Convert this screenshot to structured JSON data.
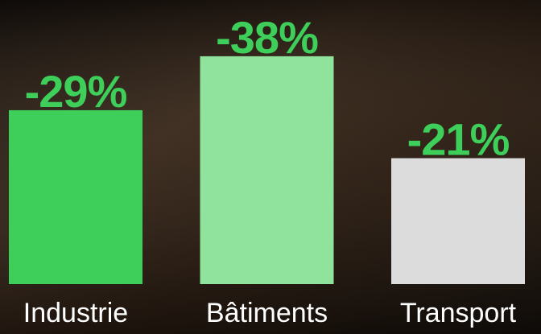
{
  "chart_data": {
    "type": "bar",
    "categories": [
      "Industrie",
      "Bâtiments",
      "Transport"
    ],
    "values": [
      -29,
      -38,
      -21
    ],
    "value_labels": [
      "-29%",
      "-38%",
      "-21%"
    ],
    "colors": [
      "#3ecf5a",
      "#8fe39c",
      "#dcdcdc"
    ],
    "label_color": "#3ecf5a",
    "ylim": [
      0,
      -40
    ]
  }
}
